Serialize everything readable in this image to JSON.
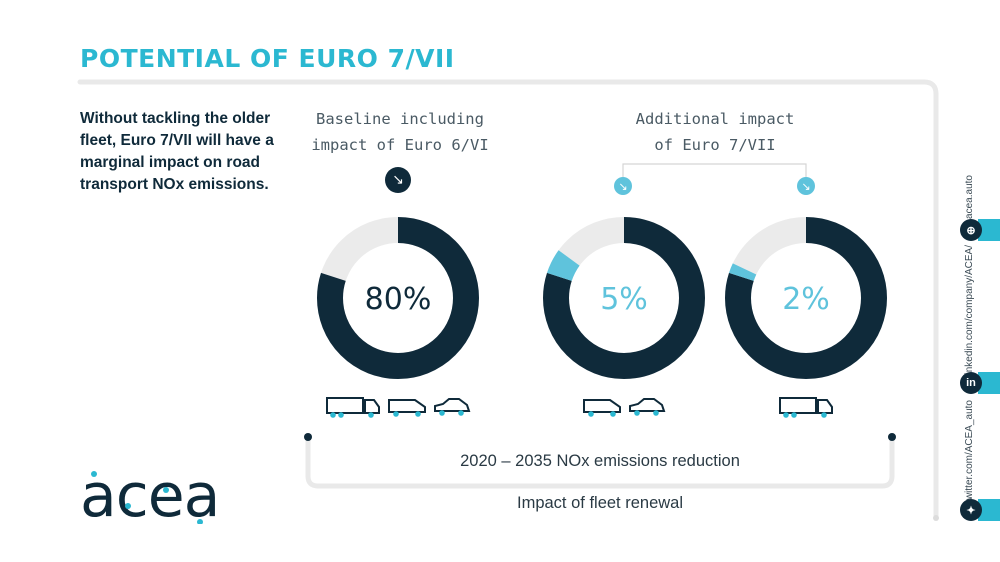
{
  "title": "POTENTIAL OF EURO 7/VII",
  "intro": "Without tackling the older fleet, Euro 7/VII will have a marginal impact on road transport NOx emissions.",
  "headers": {
    "baseline_line1": "Baseline including",
    "baseline_line2": "impact of Euro 6/VI",
    "additional_line1": "Additional impact",
    "additional_line2": "of Euro 7/VII"
  },
  "chart_data": {
    "type": "pie",
    "donuts": [
      {
        "label": "80%",
        "value": 80,
        "vehicles": [
          "truck",
          "van",
          "car"
        ]
      },
      {
        "label": "5%",
        "value": 5,
        "offset": 80,
        "vehicles": [
          "van",
          "car"
        ]
      },
      {
        "label": "2%",
        "value": 2,
        "offset": 80,
        "vehicles": [
          "truck"
        ]
      }
    ],
    "colors": {
      "base": "#0f2a3a",
      "impact": "#5fc3dc",
      "remaining": "#ebebeb"
    }
  },
  "bar_label": "2020 – 2035 NOx emissions reduction",
  "footer_label": "Impact of fleet renewal",
  "logo_text": "acea",
  "social": {
    "website": "acea.auto",
    "linkedin": "linkedin.com/company/ACEA/",
    "twitter": "twitter.com/ACEA_auto",
    "linkedin_glyph": "in"
  },
  "accent_color": "#2bb8d1"
}
